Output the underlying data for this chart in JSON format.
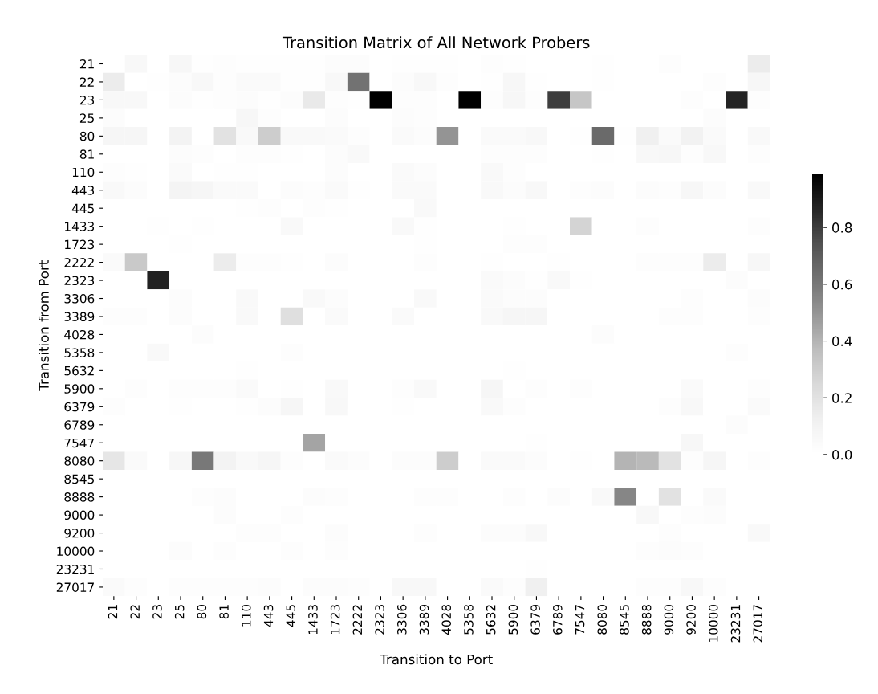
{
  "chart_data": {
    "type": "heatmap",
    "title": "Transition Matrix of All Network Probers",
    "xlabel": "Transition to Port",
    "ylabel": "Transition from Port",
    "categories": [
      "21",
      "22",
      "23",
      "25",
      "80",
      "81",
      "110",
      "443",
      "445",
      "1433",
      "1723",
      "2222",
      "2323",
      "3306",
      "3389",
      "4028",
      "5358",
      "5632",
      "5900",
      "6379",
      "6789",
      "7547",
      "8080",
      "8545",
      "8888",
      "9000",
      "9200",
      "10000",
      "23231",
      "27017"
    ],
    "y_categories": [
      "21",
      "22",
      "23",
      "25",
      "80",
      "81",
      "110",
      "443",
      "445",
      "1433",
      "1723",
      "2222",
      "2323",
      "3306",
      "3389",
      "4028",
      "5358",
      "5632",
      "5900",
      "6379",
      "6789",
      "7547",
      "8080",
      "8545",
      "8888",
      "9000",
      "9200",
      "10000",
      "23231",
      "27017"
    ],
    "cells": [
      [
        0,
        0.06,
        0,
        0.07,
        0.01,
        0.02,
        0.01,
        0.01,
        0.01,
        0.01,
        0.03,
        0.03,
        0,
        0.01,
        0.01,
        0.01,
        0,
        0.02,
        0.01,
        0,
        0,
        0,
        0.01,
        0,
        0,
        0.02,
        0,
        0,
        0,
        0.15
      ],
      [
        0.15,
        0,
        0.01,
        0.03,
        0.06,
        0.02,
        0.04,
        0.04,
        0.01,
        0.01,
        0.06,
        0.62,
        0,
        0.03,
        0.06,
        0.02,
        0,
        0.01,
        0.07,
        0.01,
        0,
        0,
        0.01,
        0,
        0,
        0,
        0,
        0.02,
        0,
        0.07
      ],
      [
        0.06,
        0.06,
        0,
        0.03,
        0.01,
        0.02,
        0.03,
        0.01,
        0.03,
        0.16,
        0.02,
        0.01,
        0.99,
        0.02,
        0.02,
        0,
        0.99,
        0.02,
        0.07,
        0.02,
        0.8,
        0.33,
        0,
        0,
        0,
        0,
        0.02,
        0,
        0.87,
        0.02
      ],
      [
        0.03,
        0,
        0,
        0,
        0,
        0,
        0.07,
        0.02,
        0,
        0,
        0.03,
        0,
        0,
        0.03,
        0.02,
        0,
        0,
        0,
        0,
        0,
        0,
        0,
        0,
        0,
        0,
        0,
        0,
        0.03,
        0,
        0
      ],
      [
        0.08,
        0.08,
        0,
        0.1,
        0,
        0.2,
        0.05,
        0.3,
        0.05,
        0.05,
        0.04,
        0.02,
        0,
        0.04,
        0.03,
        0.5,
        0,
        0.04,
        0.04,
        0.06,
        0,
        0.01,
        0.65,
        0.01,
        0.12,
        0.04,
        0.11,
        0.04,
        0,
        0.05
      ],
      [
        0,
        0,
        0,
        0.03,
        0.02,
        0,
        0.02,
        0.02,
        0.01,
        0,
        0.03,
        0.05,
        0,
        0,
        0,
        0,
        0,
        0.02,
        0.02,
        0.02,
        0,
        0,
        0.01,
        0,
        0.06,
        0.07,
        0.02,
        0.06,
        0,
        0.02
      ],
      [
        0.02,
        0.01,
        0,
        0.04,
        0,
        0.01,
        0.01,
        0,
        0,
        0,
        0.03,
        0,
        0,
        0.04,
        0.03,
        0,
        0,
        0.05,
        0.02,
        0,
        0,
        0,
        0,
        0,
        0,
        0,
        0,
        0,
        0,
        0
      ],
      [
        0.05,
        0.03,
        0,
        0.09,
        0.08,
        0.04,
        0.04,
        0,
        0.03,
        0.02,
        0.04,
        0.01,
        0,
        0.04,
        0.04,
        0,
        0,
        0.05,
        0.03,
        0.06,
        0,
        0.02,
        0.03,
        0,
        0.03,
        0.02,
        0.07,
        0.03,
        0,
        0.05
      ],
      [
        0,
        0,
        0,
        0,
        0,
        0,
        0.01,
        0.02,
        0,
        0.02,
        0.01,
        0,
        0,
        0,
        0.05,
        0,
        0,
        0,
        0,
        0,
        0,
        0,
        0,
        0,
        0,
        0,
        0,
        0,
        0,
        0
      ],
      [
        0,
        0,
        0.01,
        0,
        0.01,
        0,
        0,
        0,
        0.05,
        0,
        0,
        0,
        0,
        0.05,
        0.01,
        0,
        0,
        0,
        0.01,
        0,
        0,
        0.27,
        0,
        0,
        0.02,
        0,
        0,
        0,
        0,
        0.02
      ],
      [
        0,
        0,
        0,
        0.01,
        0,
        0,
        0,
        0,
        0,
        0,
        0,
        0,
        0,
        0,
        0.01,
        0,
        0,
        0,
        0.02,
        0.02,
        0,
        0,
        0,
        0,
        0,
        0,
        0,
        0,
        0,
        0
      ],
      [
        0.04,
        0.32,
        0,
        0,
        0,
        0.15,
        0.02,
        0.02,
        0.01,
        0,
        0.03,
        0,
        0,
        0,
        0.02,
        0,
        0,
        0.01,
        0,
        0,
        0.01,
        0,
        0,
        0,
        0.02,
        0.02,
        0.02,
        0.15,
        0,
        0.07
      ],
      [
        0,
        0,
        0.88,
        0,
        0,
        0,
        0,
        0,
        0,
        0,
        0,
        0,
        0,
        0,
        0,
        0,
        0,
        0.04,
        0.03,
        0.01,
        0.05,
        0.01,
        0,
        0,
        0,
        0,
        0,
        0,
        0.03,
        0
      ],
      [
        0,
        0,
        0,
        0.03,
        0,
        0,
        0.05,
        0,
        0,
        0.05,
        0.03,
        0,
        0,
        0,
        0.05,
        0,
        0,
        0.04,
        0.03,
        0.03,
        0,
        0,
        0,
        0,
        0,
        0,
        0.02,
        0,
        0,
        0.03
      ],
      [
        0.02,
        0.02,
        0,
        0.03,
        0,
        0,
        0.05,
        0,
        0.22,
        0,
        0.04,
        0,
        0,
        0.04,
        0,
        0,
        0,
        0.05,
        0.08,
        0.08,
        0,
        0,
        0,
        0,
        0,
        0.02,
        0.02,
        0,
        0,
        0.02
      ],
      [
        0,
        0,
        0,
        0,
        0.03,
        0,
        0,
        0,
        0,
        0,
        0,
        0,
        0,
        0,
        0,
        0,
        0,
        0,
        0,
        0,
        0,
        0,
        0.03,
        0,
        0,
        0,
        0,
        0,
        0,
        0
      ],
      [
        0,
        0,
        0.05,
        0,
        0,
        0,
        0,
        0,
        0.02,
        0,
        0,
        0,
        0,
        0,
        0,
        0,
        0,
        0,
        0,
        0,
        0,
        0,
        0,
        0,
        0,
        0,
        0,
        0,
        0.02,
        0
      ],
      [
        0,
        0,
        0,
        0,
        0,
        0,
        0.01,
        0,
        0,
        0,
        0,
        0,
        0,
        0,
        0,
        0,
        0,
        0,
        0.01,
        0,
        0,
        0,
        0,
        0,
        0,
        0,
        0,
        0,
        0,
        0
      ],
      [
        0,
        0.02,
        0,
        0.02,
        0.02,
        0.02,
        0.04,
        0,
        0.01,
        0,
        0.05,
        0,
        0,
        0.02,
        0.05,
        0,
        0,
        0.08,
        0,
        0.02,
        0,
        0.02,
        0,
        0,
        0,
        0,
        0.04,
        0,
        0,
        0.02
      ],
      [
        0.02,
        0,
        0,
        0.01,
        0,
        0,
        0.01,
        0.03,
        0.08,
        0,
        0.06,
        0,
        0,
        0.01,
        0,
        0,
        0,
        0.05,
        0.02,
        0,
        0,
        0,
        0,
        0,
        0,
        0.02,
        0.06,
        0,
        0,
        0.04
      ],
      [
        0,
        0,
        0,
        0,
        0,
        0,
        0,
        0,
        0,
        0,
        0,
        0,
        0,
        0,
        0,
        0,
        0,
        0,
        0,
        0,
        0,
        0,
        0,
        0,
        0,
        0,
        0,
        0,
        0.03,
        0
      ],
      [
        0,
        0,
        0,
        0,
        0,
        0,
        0,
        0,
        0,
        0.45,
        0,
        0,
        0,
        0,
        0,
        0,
        0,
        0,
        0,
        0.01,
        0,
        0,
        0,
        0,
        0,
        0,
        0.07,
        0,
        0,
        0
      ],
      [
        0.18,
        0.04,
        0,
        0.07,
        0.6,
        0.1,
        0.05,
        0.08,
        0.02,
        0,
        0.04,
        0.03,
        0,
        0.03,
        0.03,
        0.3,
        0,
        0.04,
        0.04,
        0.03,
        0,
        0.01,
        0,
        0.4,
        0.38,
        0.2,
        0.02,
        0.08,
        0,
        0.02
      ],
      [
        0,
        0,
        0,
        0,
        0,
        0,
        0,
        0,
        0,
        0,
        0,
        0,
        0,
        0,
        0,
        0,
        0,
        0,
        0,
        0,
        0,
        0,
        0,
        0,
        0,
        0,
        0,
        0,
        0,
        0
      ],
      [
        0,
        0,
        0,
        0,
        0.02,
        0.03,
        0,
        0,
        0,
        0.03,
        0.02,
        0,
        0,
        0,
        0.02,
        0.02,
        0,
        0,
        0.02,
        0,
        0.03,
        0,
        0.05,
        0.55,
        0,
        0.2,
        0,
        0.04,
        0,
        0
      ],
      [
        0,
        0,
        0,
        0,
        0,
        0.03,
        0,
        0,
        0.02,
        0,
        0,
        0,
        0,
        0,
        0,
        0,
        0,
        0,
        0,
        0,
        0,
        0,
        0,
        0,
        0.06,
        0,
        0.02,
        0.03,
        0,
        0
      ],
      [
        0,
        0,
        0,
        0,
        0,
        0,
        0.02,
        0.02,
        0,
        0,
        0.03,
        0,
        0,
        0,
        0.02,
        0,
        0,
        0.03,
        0.03,
        0.06,
        0,
        0,
        0,
        0,
        0,
        0.02,
        0,
        0,
        0,
        0.05
      ],
      [
        0,
        0,
        0,
        0.03,
        0,
        0.02,
        0,
        0,
        0.02,
        0,
        0.02,
        0,
        0,
        0,
        0,
        0,
        0,
        0,
        0,
        0,
        0,
        0,
        0,
        0,
        0.02,
        0.03,
        0.02,
        0,
        0,
        0
      ],
      [
        0,
        0,
        0,
        0,
        0,
        0,
        0,
        0,
        0,
        0,
        0,
        0,
        0,
        0,
        0,
        0,
        0,
        0,
        0,
        0.01,
        0,
        0,
        0,
        0,
        0,
        0,
        0,
        0,
        0,
        0
      ],
      [
        0.04,
        0.02,
        0,
        0.02,
        0.02,
        0.02,
        0.02,
        0.03,
        0,
        0.03,
        0.03,
        0.02,
        0,
        0.06,
        0.06,
        0,
        0,
        0.04,
        0.02,
        0.12,
        0,
        0,
        0,
        0,
        0.02,
        0.02,
        0.06,
        0.02,
        0,
        0
      ]
    ],
    "clim": [
      0,
      0.99
    ],
    "cticks": [
      {
        "value": 0,
        "label": "0.0"
      },
      0.2,
      0.4,
      0.6,
      0.8
    ]
  }
}
